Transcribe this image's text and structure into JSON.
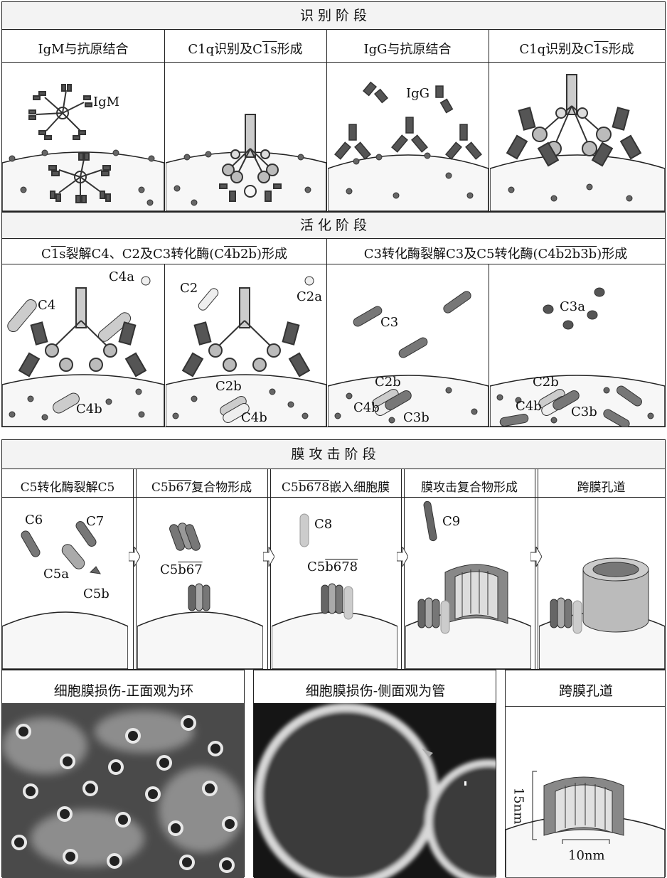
{
  "sections": {
    "recognition": {
      "title": "识 别 阶 段",
      "captions": {
        "p1": "IgM与抗原结合",
        "p2": {
          "pre": "C1q识别及C",
          "over": "1s",
          "post": "形成"
        },
        "p3": "IgG与抗原结合",
        "p4": {
          "pre": "C1q识别及C",
          "over": "1s",
          "post": "形成"
        }
      },
      "labels": {
        "igm": "IgM",
        "igg": "IgG"
      }
    },
    "activation": {
      "title": "活 化 阶 段",
      "captions": {
        "left": {
          "p1": "C",
          "o1": "1s",
          "p2": "裂解C4、C2及C3转化酶(C",
          "o2": "4b2b",
          "p3": ")形成"
        },
        "right": {
          "p1": "C3转化酶裂解C3及C5转化酶(C4",
          "o1": "b2b3b",
          "p2": ")形成"
        }
      },
      "labels": {
        "c4a": "C4a",
        "c4": "C4",
        "c4b": "C4b",
        "c2": "C2",
        "c2a": "C2a",
        "c2b": "C2b",
        "c3": "C3",
        "c3a": "C3a",
        "c3b": "C3b"
      }
    },
    "attack": {
      "title": "膜 攻 击 阶 段",
      "captions": {
        "p1": "C5转化酶裂解C5",
        "p2": {
          "pre": "C5",
          "over": "b67",
          "post": "复合物形成"
        },
        "p3": {
          "pre": "C5",
          "over": "b678",
          "post": "嵌入细胞膜"
        },
        "p4": "膜攻击复合物形成",
        "p5": "跨膜孔道"
      },
      "labels": {
        "c6": "C6",
        "c7": "C7",
        "c5a": "C5a",
        "c5b": "C5b",
        "c5b67_pre": "C5",
        "c5b67_over": "b67",
        "c8": "C8",
        "c5b678_pre": "C5",
        "c5b678_over": "b678",
        "c9": "C9"
      }
    },
    "bottom": {
      "captions": {
        "p1": "细胞膜损伤-正面观为环",
        "p2": "细胞膜损伤-侧面观为管",
        "p3": "跨膜孔道"
      },
      "labels": {
        "height": "15nm",
        "width": "10nm"
      }
    }
  },
  "colors": {
    "dark": "#555555",
    "mid": "#8a8a8a",
    "light": "#c8c8c8",
    "line": "#222222"
  }
}
